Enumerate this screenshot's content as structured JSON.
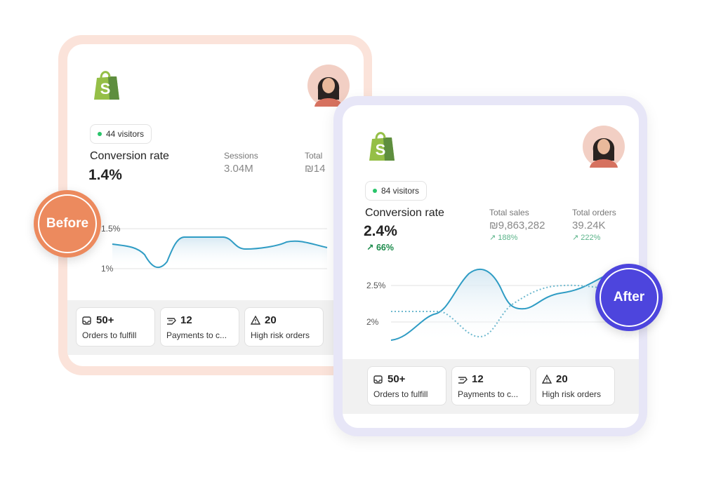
{
  "before_card": {
    "badge": "Before",
    "visitors": "44 visitors",
    "metric_label": "Conversion rate",
    "metric_value": "1.4%",
    "stats": [
      {
        "label": "Sessions",
        "value": "3.04M"
      },
      {
        "label": "Total",
        "value": "₪14"
      }
    ],
    "chart_ticks": [
      "1.5%",
      "1%"
    ],
    "tiles": [
      {
        "value": "50+",
        "label": "Orders to fulfill"
      },
      {
        "value": "12",
        "label": "Payments to c..."
      },
      {
        "value": "20",
        "label": "High risk orders"
      }
    ]
  },
  "after_card": {
    "badge": "After",
    "visitors": "84 visitors",
    "metric_label": "Conversion rate",
    "metric_value": "2.4%",
    "metric_change": "66%",
    "stats": [
      {
        "label": "Total sales",
        "value": "₪9,863,282",
        "change": "188%"
      },
      {
        "label": "Total orders",
        "value": "39.24K",
        "change": "222%"
      }
    ],
    "chart_ticks": [
      "2.5%",
      "2%"
    ],
    "tiles": [
      {
        "value": "50+",
        "label": "Orders to fulfill"
      },
      {
        "value": "12",
        "label": "Payments to c..."
      },
      {
        "value": "20",
        "label": "High risk orders"
      }
    ]
  }
}
